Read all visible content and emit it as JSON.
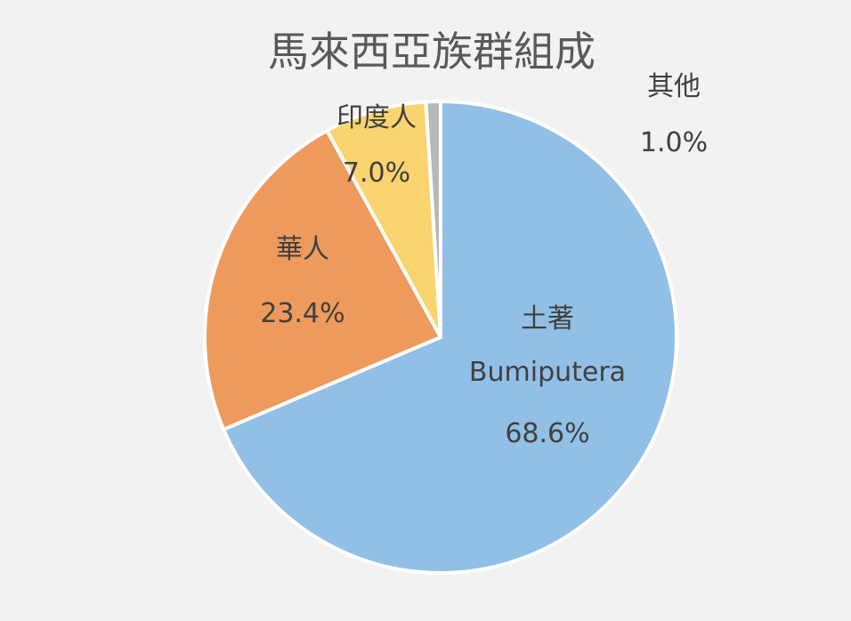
{
  "chart_data": {
    "type": "pie",
    "title": "馬來西亞族群組成",
    "slices": [
      {
        "name": "土著",
        "name2": "Bumiputera",
        "value_label": "68.6%",
        "value": 68.6,
        "color": "#92bfe6"
      },
      {
        "name": "華人",
        "value_label": "23.4%",
        "value": 23.4,
        "color": "#ee9a5c"
      },
      {
        "name": "印度人",
        "value_label": "7.0%",
        "value": 7.0,
        "color": "#f9d46f"
      },
      {
        "name": "其他",
        "value_label": "1.0%",
        "value": 1.0,
        "color": "#b8b8b8"
      }
    ]
  }
}
